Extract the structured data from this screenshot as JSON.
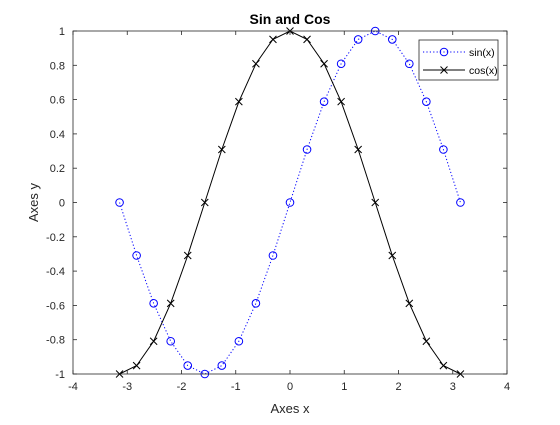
{
  "chart_data": {
    "type": "line",
    "title": "Sin and Cos",
    "xlabel": "Axes x",
    "ylabel": "Axes y",
    "xlim": [
      -4,
      4
    ],
    "ylim": [
      -1,
      1
    ],
    "xticks": [
      -4,
      -3,
      -2,
      -1,
      0,
      1,
      2,
      3,
      4
    ],
    "xtick_labels": [
      "-4",
      "-3",
      "-2",
      "-1",
      "0",
      "1",
      "2",
      "3",
      "4"
    ],
    "yticks": [
      -1,
      -0.8,
      -0.6,
      -0.4,
      -0.2,
      0,
      0.2,
      0.4,
      0.6,
      0.8,
      1
    ],
    "ytick_labels": [
      "-1",
      "-0.8",
      "-0.6",
      "-0.4",
      "-0.2",
      "0",
      "0.2",
      "0.4",
      "0.6",
      "0.8",
      "1"
    ],
    "grid": false,
    "legend_position": "top-right",
    "x": [
      -3.1416,
      -2.8142,
      -2.4871,
      -2.1599,
      -1.8326,
      -1.5708,
      -1.1781,
      -0.8508,
      -0.5236,
      -0.1963,
      0.1309,
      0.3927,
      0.7854,
      1.0472,
      1.309,
      1.5708,
      1.8326,
      2.1599,
      2.4871,
      2.8142,
      3.1416
    ],
    "series": [
      {
        "name": "sin(x)",
        "color": "#0000ff",
        "line_style": "dotted",
        "marker": "circle",
        "x": [
          -3.1416,
          -2.8274,
          -2.5133,
          -2.1991,
          -1.885,
          -1.5708,
          -1.2566,
          -0.9425,
          -0.6283,
          -0.3142,
          0.0,
          0.3142,
          0.6283,
          0.9425,
          1.2566,
          1.5708,
          1.885,
          2.1991,
          2.5133,
          2.8274,
          3.1416
        ],
        "values": [
          0.0,
          -0.309,
          -0.588,
          -0.809,
          -0.951,
          -1.0,
          -0.951,
          -0.809,
          -0.588,
          -0.309,
          0.0,
          0.309,
          0.588,
          0.809,
          0.951,
          1.0,
          0.951,
          0.809,
          0.588,
          0.309,
          0.0
        ]
      },
      {
        "name": "cos(x)",
        "color": "#000000",
        "line_style": "solid",
        "marker": "x",
        "x": [
          -3.1416,
          -2.8274,
          -2.5133,
          -2.1991,
          -1.885,
          -1.5708,
          -1.2566,
          -0.9425,
          -0.6283,
          -0.3142,
          0.0,
          0.3142,
          0.6283,
          0.9425,
          1.2566,
          1.5708,
          1.885,
          2.1991,
          2.5133,
          2.8274,
          3.1416
        ],
        "values": [
          -1.0,
          -0.951,
          -0.809,
          -0.588,
          -0.309,
          0.0,
          0.309,
          0.588,
          0.809,
          0.951,
          1.0,
          0.951,
          0.809,
          0.588,
          0.309,
          0.0,
          -0.309,
          -0.588,
          -0.809,
          -0.951,
          -1.0
        ]
      }
    ]
  }
}
